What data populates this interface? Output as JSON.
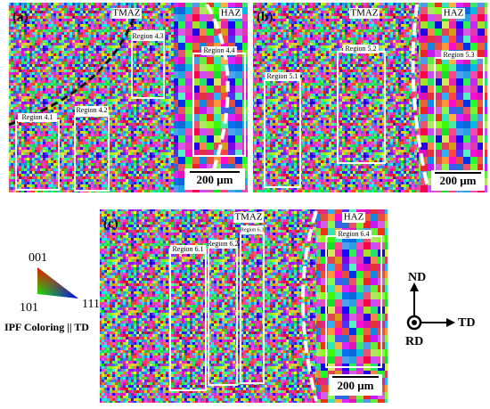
{
  "panels": [
    {
      "label": "(a)",
      "tmaz": "TMAZ",
      "haz": "HAZ",
      "regions": [
        "Region 4.1",
        "Region 4.2",
        "Region 4.3",
        "Region 4.4"
      ],
      "scale_bar": "200 μm"
    },
    {
      "label": "(b)",
      "tmaz": "TMAZ",
      "haz": "HAZ",
      "regions": [
        "Region 5.1",
        "Region 5.2",
        "Region 5.3"
      ],
      "scale_bar": "200 μm"
    },
    {
      "label": "(c)",
      "tmaz": "TMAZ",
      "haz": "HAZ",
      "regions": [
        "Region 6.1",
        "Region 6.2",
        "Region 6.3",
        "Region 6.4"
      ],
      "scale_bar": "200 μm"
    }
  ],
  "legend": {
    "top": "001",
    "left": "101",
    "right": "111",
    "caption": "IPF Coloring || TD"
  },
  "axes": {
    "up": "ND",
    "right": "TD",
    "center": "RD"
  }
}
